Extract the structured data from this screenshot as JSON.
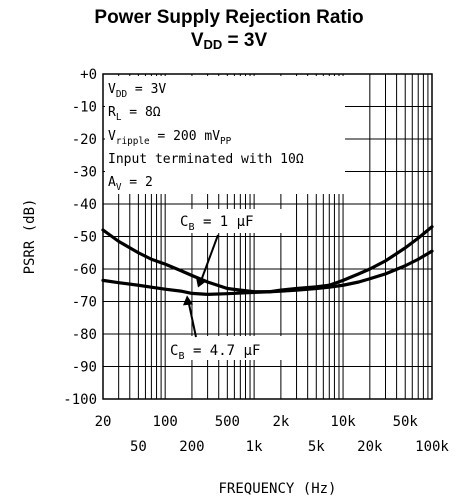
{
  "title": {
    "line1": "Power Supply Rejection Ratio",
    "line2_main": "V",
    "line2_sub": "DD",
    "line2_rest": " = 3V"
  },
  "chart_data": {
    "type": "line",
    "x_scale": "log",
    "xlim": [
      20,
      100000
    ],
    "ylim": [
      -100,
      0
    ],
    "xlabel": "FREQUENCY (Hz)",
    "ylabel": "PSRR (dB)",
    "grid": true,
    "x_ticks_upper": [
      {
        "value": 20,
        "label": "20"
      },
      {
        "value": 100,
        "label": "100"
      },
      {
        "value": 500,
        "label": "500"
      },
      {
        "value": 2000,
        "label": "2k"
      },
      {
        "value": 10000,
        "label": "10k"
      },
      {
        "value": 50000,
        "label": "50k"
      }
    ],
    "x_ticks_lower": [
      {
        "value": 50,
        "label": "50"
      },
      {
        "value": 200,
        "label": "200"
      },
      {
        "value": 1000,
        "label": "1k"
      },
      {
        "value": 5000,
        "label": "5k"
      },
      {
        "value": 20000,
        "label": "20k"
      },
      {
        "value": 100000,
        "label": "100k"
      }
    ],
    "y_ticks": [
      {
        "value": 0,
        "label": "+0"
      },
      {
        "value": -10,
        "label": "-10"
      },
      {
        "value": -20,
        "label": "-20"
      },
      {
        "value": -30,
        "label": "-30"
      },
      {
        "value": -40,
        "label": "-40"
      },
      {
        "value": -50,
        "label": "-50"
      },
      {
        "value": -60,
        "label": "-60"
      },
      {
        "value": -70,
        "label": "-70"
      },
      {
        "value": -80,
        "label": "-80"
      },
      {
        "value": -90,
        "label": "-90"
      },
      {
        "value": -100,
        "label": "-100"
      }
    ],
    "conditions": {
      "vdd": {
        "main": "V",
        "sub": "DD",
        "rest": " = 3V"
      },
      "rl": {
        "main": "R",
        "sub": "L",
        "rest": " = 8Ω"
      },
      "vripple": {
        "main": "V",
        "sub": "ripple",
        "rest": " = 200 mV",
        "sub2": "PP"
      },
      "input": "Input terminated with 10Ω",
      "av": {
        "main": "A",
        "sub": "V",
        "rest": " = 2"
      }
    },
    "series": [
      {
        "label_main": "C",
        "label_sub": "B",
        "label_rest": " = 1 μF",
        "x": [
          20,
          30,
          50,
          70,
          100,
          150,
          200,
          300,
          500,
          700,
          1000,
          1500,
          2000,
          3000,
          5000,
          7000,
          10000,
          15000,
          20000,
          30000,
          50000,
          70000,
          100000
        ],
        "y": [
          -48,
          -51.5,
          -55,
          -57,
          -58.5,
          -60.5,
          -62,
          -64,
          -66,
          -66.5,
          -67,
          -67,
          -66.5,
          -66,
          -65.5,
          -65,
          -63.5,
          -61.5,
          -60,
          -57.5,
          -53.5,
          -50.5,
          -47
        ]
      },
      {
        "label_main": "C",
        "label_sub": "B",
        "label_rest": " = 4.7 μF",
        "x": [
          20,
          30,
          50,
          70,
          100,
          150,
          200,
          300,
          500,
          700,
          1000,
          1500,
          2000,
          3000,
          5000,
          7000,
          10000,
          15000,
          20000,
          30000,
          50000,
          70000,
          100000
        ],
        "y": [
          -63.5,
          -64.2,
          -65,
          -65.6,
          -66.2,
          -66.8,
          -67.5,
          -67.8,
          -67.6,
          -67.4,
          -67.2,
          -67,
          -66.8,
          -66.5,
          -66,
          -65.6,
          -65,
          -64,
          -63,
          -61.5,
          -59,
          -57,
          -54.5
        ]
      }
    ],
    "colors": {
      "line": "#000000",
      "grid": "#000000",
      "background": "#ffffff"
    }
  }
}
